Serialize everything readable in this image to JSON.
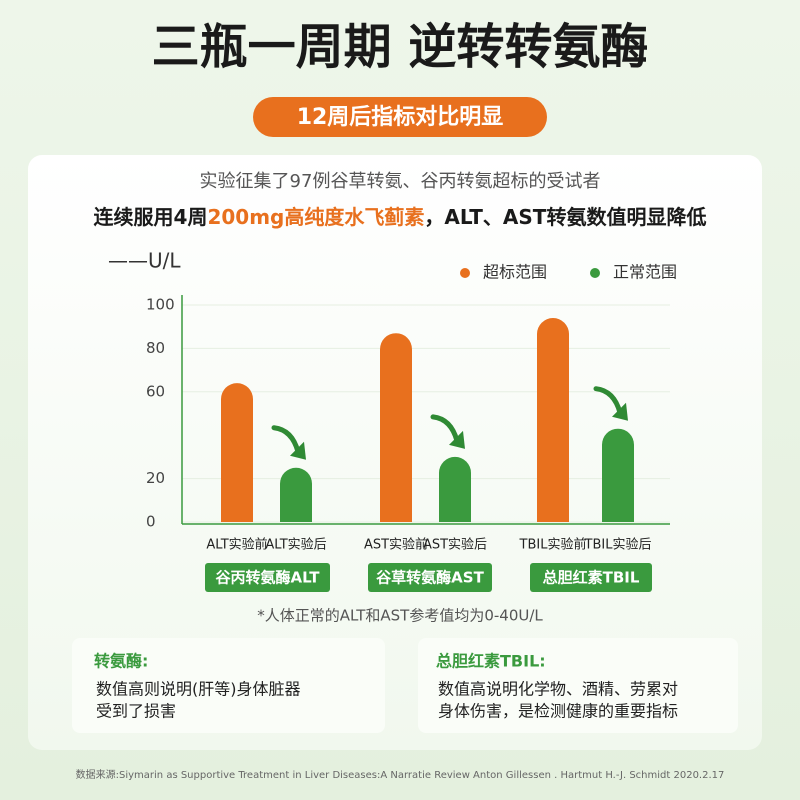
{
  "header": {
    "title": "三瓶一周期 逆转转氨酶",
    "badge": "12周后指标对比明显"
  },
  "intro": {
    "line1": "实验征集了97例谷草转氨、谷丙转氨超标的受试者",
    "line2": [
      "连续服用4周",
      "200mg高纯度水飞蓟素",
      "，ALT、AST转氨数值明显降低"
    ]
  },
  "chart_data": {
    "type": "bar",
    "y_label": "——U/L",
    "categories": [
      "ALT实验前",
      "ALT实验后",
      "AST实验前",
      "AST实验后",
      "TBIL实验前",
      "TBIL实验后"
    ],
    "groups": [
      "谷丙转氨酶ALT",
      "谷草转氨酶AST",
      "总胆红素TBIL"
    ],
    "series": [
      {
        "name": "超标范围",
        "color": "#e8701e",
        "values": [
          64,
          null,
          87,
          null,
          94,
          null
        ]
      },
      {
        "name": "正常范围",
        "color": "#3a9a3e",
        "values": [
          null,
          25,
          null,
          30,
          null,
          43
        ]
      }
    ],
    "ylim": [
      0,
      100
    ],
    "yticks": [
      0,
      20,
      60,
      80,
      100
    ],
    "grid": true,
    "legend": "top-right"
  },
  "note": "*人体正常的ALT和AST参考值均为0-40U/L",
  "cards": [
    {
      "title": "转氨酶:",
      "lines": [
        "数值高则说明(肝等)身体脏器",
        "受到了损害"
      ]
    },
    {
      "title": "总胆红素TBIL:",
      "lines": [
        "数值高说明化学物、酒精、劳累对",
        "身体伤害，是检测健康的重要指标"
      ]
    }
  ],
  "source": "数据来源:Siymarin as Supportive Treatment in Liver Diseases:A Narratie Review Anton Gillessen . Hartmut H.-J. Schmidt 2020.2.17"
}
